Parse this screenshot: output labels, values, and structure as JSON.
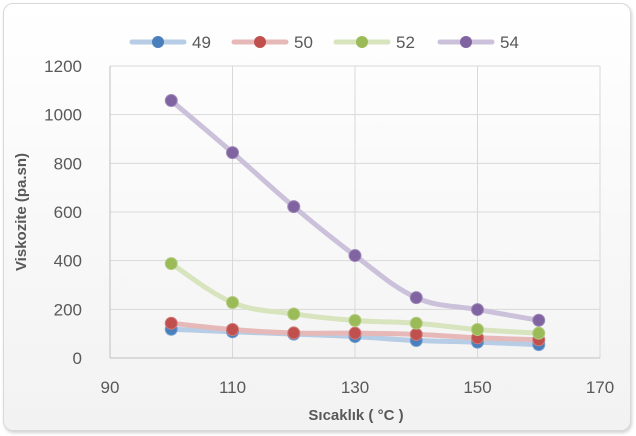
{
  "chart_data": {
    "type": "scatter",
    "xlabel": "Sıcaklık ( °C )",
    "ylabel": "Viskozite (pa.sn)",
    "xlim": [
      90,
      170
    ],
    "ylim": [
      0,
      1200
    ],
    "xticks": [
      90,
      110,
      130,
      150,
      170
    ],
    "yticks": [
      0,
      200,
      400,
      600,
      800,
      1000,
      1200
    ],
    "grid": true,
    "legend_position": "top",
    "line_style": "smooth",
    "x": [
      100,
      110,
      120,
      130,
      140,
      150,
      160
    ],
    "series": [
      {
        "name": "49",
        "color": "#4a7fbd",
        "values": [
          118,
          108,
          98,
          88,
          72,
          65,
          55
        ]
      },
      {
        "name": "50",
        "color": "#c0504d",
        "values": [
          143,
          117,
          103,
          102,
          97,
          83,
          75
        ]
      },
      {
        "name": "52",
        "color": "#9bbb59",
        "values": [
          388,
          228,
          181,
          154,
          143,
          117,
          102
        ]
      },
      {
        "name": "54",
        "color": "#8064a2",
        "values": [
          1058,
          844,
          622,
          421,
          248,
          199,
          155
        ]
      }
    ]
  }
}
